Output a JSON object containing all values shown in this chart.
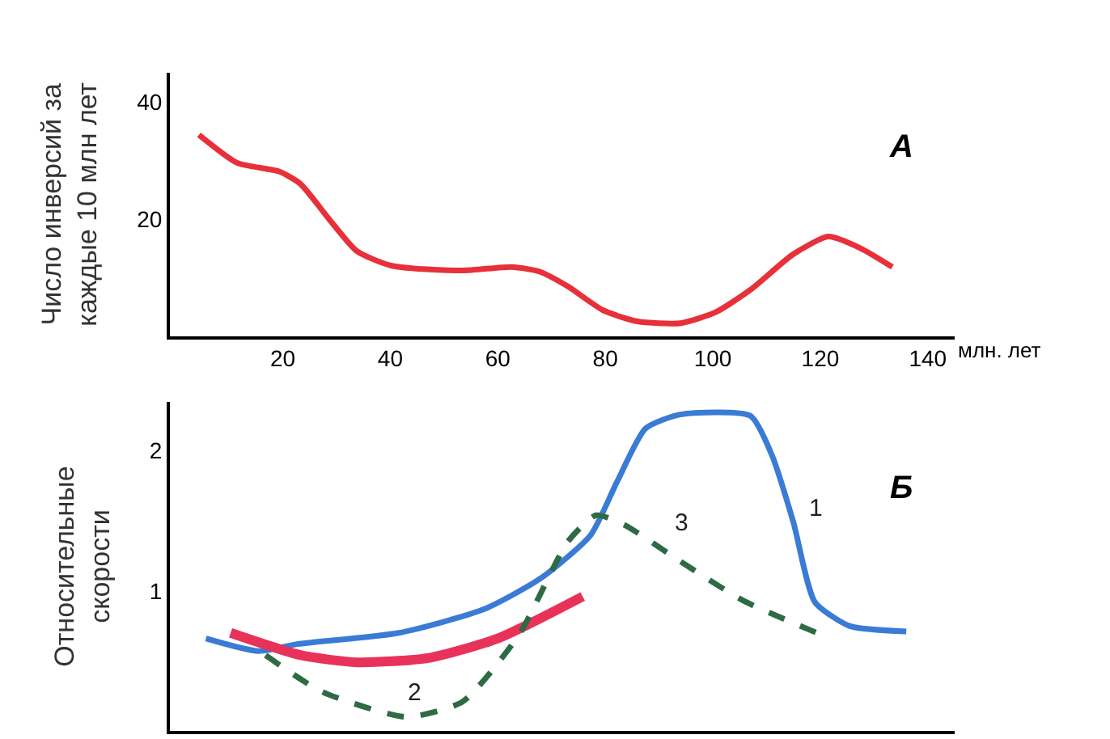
{
  "chart_data": [
    {
      "type": "line",
      "ylabel": "Число инверсий за\nкаждые 10 млн лет",
      "xlabel": "млн. лет",
      "annotations": [
        "А"
      ],
      "x": [
        4.4,
        11.5,
        19.4,
        23.3,
        28.6,
        33.8,
        40.3,
        53.5,
        62.6,
        67.8,
        73,
        79.6,
        86,
        94,
        100.6,
        107,
        115,
        121.5,
        127.5,
        133.4
      ],
      "series": [
        {
          "color": "#e8303a",
          "values": [
            34.4,
            29.6,
            28.1,
            26,
            20,
            14.5,
            12,
            11.2,
            11.8,
            11,
            8.5,
            4.4,
            2.5,
            2.2,
            4.1,
            7.9,
            14,
            17,
            15,
            11.8
          ]
        }
      ],
      "xlim": [
        -1,
        145
      ],
      "ylim": [
        0,
        45
      ],
      "xticks": [
        20,
        40,
        60,
        80,
        100,
        120,
        140
      ],
      "yticks": [
        20,
        40
      ],
      "line_style": "solid"
    },
    {
      "type": "line",
      "ylabel": "Относительные\nскорости",
      "tick_labels": "y",
      "annotations": [
        "Б",
        {
          "text": "1",
          "x": 115,
          "y": 1.49
        },
        {
          "text": "2",
          "x": 47,
          "y": 0.52
        },
        {
          "text": "3",
          "x": 94,
          "y": 1.21
        }
      ],
      "series": [
        {
          "color": "#3a7bd5",
          "line_style": "solid",
          "x": [
            5.7,
            15.5,
            22.7,
            41.6,
            57.5,
            68,
            77.3,
            82.2,
            87.5,
            94,
            107,
            111,
            115,
            119,
            125.4,
            136
          ],
          "values": [
            0.66,
            0.57,
            0.62,
            0.7,
            0.87,
            1.09,
            1.4,
            1.78,
            2.16,
            2.26,
            2.25,
            1.97,
            1.49,
            0.92,
            0.75,
            0.71
          ]
        },
        {
          "color": "#e8325a",
          "line_style": "solid",
          "x": [
            10.3,
            23.4,
            33.9,
            47,
            60,
            75.8
          ],
          "values": [
            0.7,
            0.54,
            0.49,
            0.52,
            0.66,
            0.96
          ]
        },
        {
          "color": "#2e6b45",
          "line_style": "dashed",
          "x": [
            16.8,
            27.3,
            43,
            53.5,
            64,
            73,
            78.3,
            83.6,
            94,
            105.7,
            120
          ],
          "values": [
            0.54,
            0.28,
            0.1,
            0.21,
            0.69,
            1.35,
            1.54,
            1.47,
            1.21,
            0.93,
            0.69
          ]
        }
      ],
      "xlim": [
        -1,
        145
      ],
      "ylim": [
        0,
        2.35
      ],
      "xticks": [
        20,
        40,
        60,
        80,
        100,
        120,
        140
      ],
      "yticks": [
        1,
        2
      ]
    }
  ]
}
